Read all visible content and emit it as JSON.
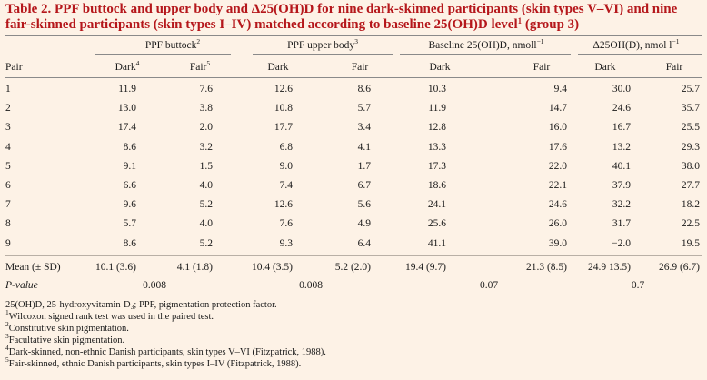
{
  "title": {
    "line1": "Table 2.  PPF buttock and upper body and Δ25(OH)D for nine dark-skinned participants (skin types V–VI) and nine",
    "line2": "fair-skinned participants (skin types I–IV) matched according to baseline 25(OH)D level",
    "sup": "1",
    "line2_end": " (group 3)"
  },
  "groups": [
    {
      "label": "PPF buttock",
      "sup": "2"
    },
    {
      "label": "PPF upper body",
      "sup": "3"
    },
    {
      "label": "Baseline 25(OH)D, nmoll",
      "sup": "−1"
    },
    {
      "label": "Δ25OH(D), nmol l",
      "sup": "−1"
    }
  ],
  "columns": {
    "pair": "Pair",
    "dark": "Dark",
    "dark_sup": "4",
    "fair": "Fair",
    "fair_sup": "5",
    "dark_plain": "Dark",
    "fair_plain": "Fair"
  },
  "rows": [
    {
      "pair": "1",
      "v": [
        "11.9",
        "7.6",
        "12.6",
        "8.6",
        "10.3",
        "9.4",
        "30.0",
        "25.7"
      ]
    },
    {
      "pair": "2",
      "v": [
        "13.0",
        "3.8",
        "10.8",
        "5.7",
        "11.9",
        "14.7",
        "24.6",
        "35.7"
      ]
    },
    {
      "pair": "3",
      "v": [
        "17.4",
        "2.0",
        "17.7",
        "3.4",
        "12.8",
        "16.0",
        "16.7",
        "25.5"
      ]
    },
    {
      "pair": "4",
      "v": [
        "8.6",
        "3.2",
        "6.8",
        "4.1",
        "13.3",
        "17.6",
        "13.2",
        "29.3"
      ]
    },
    {
      "pair": "5",
      "v": [
        "9.1",
        "1.5",
        "9.0",
        "1.7",
        "17.3",
        "22.0",
        "40.1",
        "38.0"
      ]
    },
    {
      "pair": "6",
      "v": [
        "6.6",
        "4.0",
        "7.4",
        "6.7",
        "18.6",
        "22.1",
        "37.9",
        "27.7"
      ]
    },
    {
      "pair": "7",
      "v": [
        "9.6",
        "5.2",
        "12.6",
        "5.6",
        "24.1",
        "24.6",
        "32.2",
        "18.2"
      ]
    },
    {
      "pair": "8",
      "v": [
        "5.7",
        "4.0",
        "7.6",
        "4.9",
        "25.6",
        "26.0",
        "31.7",
        "22.5"
      ]
    },
    {
      "pair": "9",
      "v": [
        "8.6",
        "5.2",
        "9.3",
        "6.4",
        "41.1",
        "39.0",
        "−2.0",
        "19.5"
      ]
    }
  ],
  "mean_row": {
    "label": "Mean (± SD)",
    "v": [
      "10.1 (3.6)",
      "4.1 (1.8)",
      "10.4 (3.5)",
      "5.2 (2.0)",
      "19.4 (9.7)",
      "21.3 (8.5)",
      "24.9 13.5)",
      "26.9 (6.7)"
    ]
  },
  "pvalue_row": {
    "label": "P-value",
    "v": [
      "0.008",
      "0.008",
      "0.07",
      "0.7"
    ]
  },
  "footnotes": {
    "abbrev_a": "25(OH)D, 25-hydroxyvitamin-D",
    "abbrev_sub": "3",
    "abbrev_b": "; PPF, pigmentation protection factor.",
    "n1_sup": "1",
    "n1": "Wilcoxon signed rank test was used in the paired test.",
    "n2_sup": "2",
    "n2": "Constitutive skin pigmentation.",
    "n3_sup": "3",
    "n3": "Facultative skin pigmentation.",
    "n4_sup": "4",
    "n4": "Dark-skinned, non-ethnic Danish participants, skin types V–VI (Fitzpatrick, 1988).",
    "n5_sup": "5",
    "n5": "Fair-skinned, ethnic Danish participants, skin types I–IV (Fitzpatrick, 1988)."
  }
}
